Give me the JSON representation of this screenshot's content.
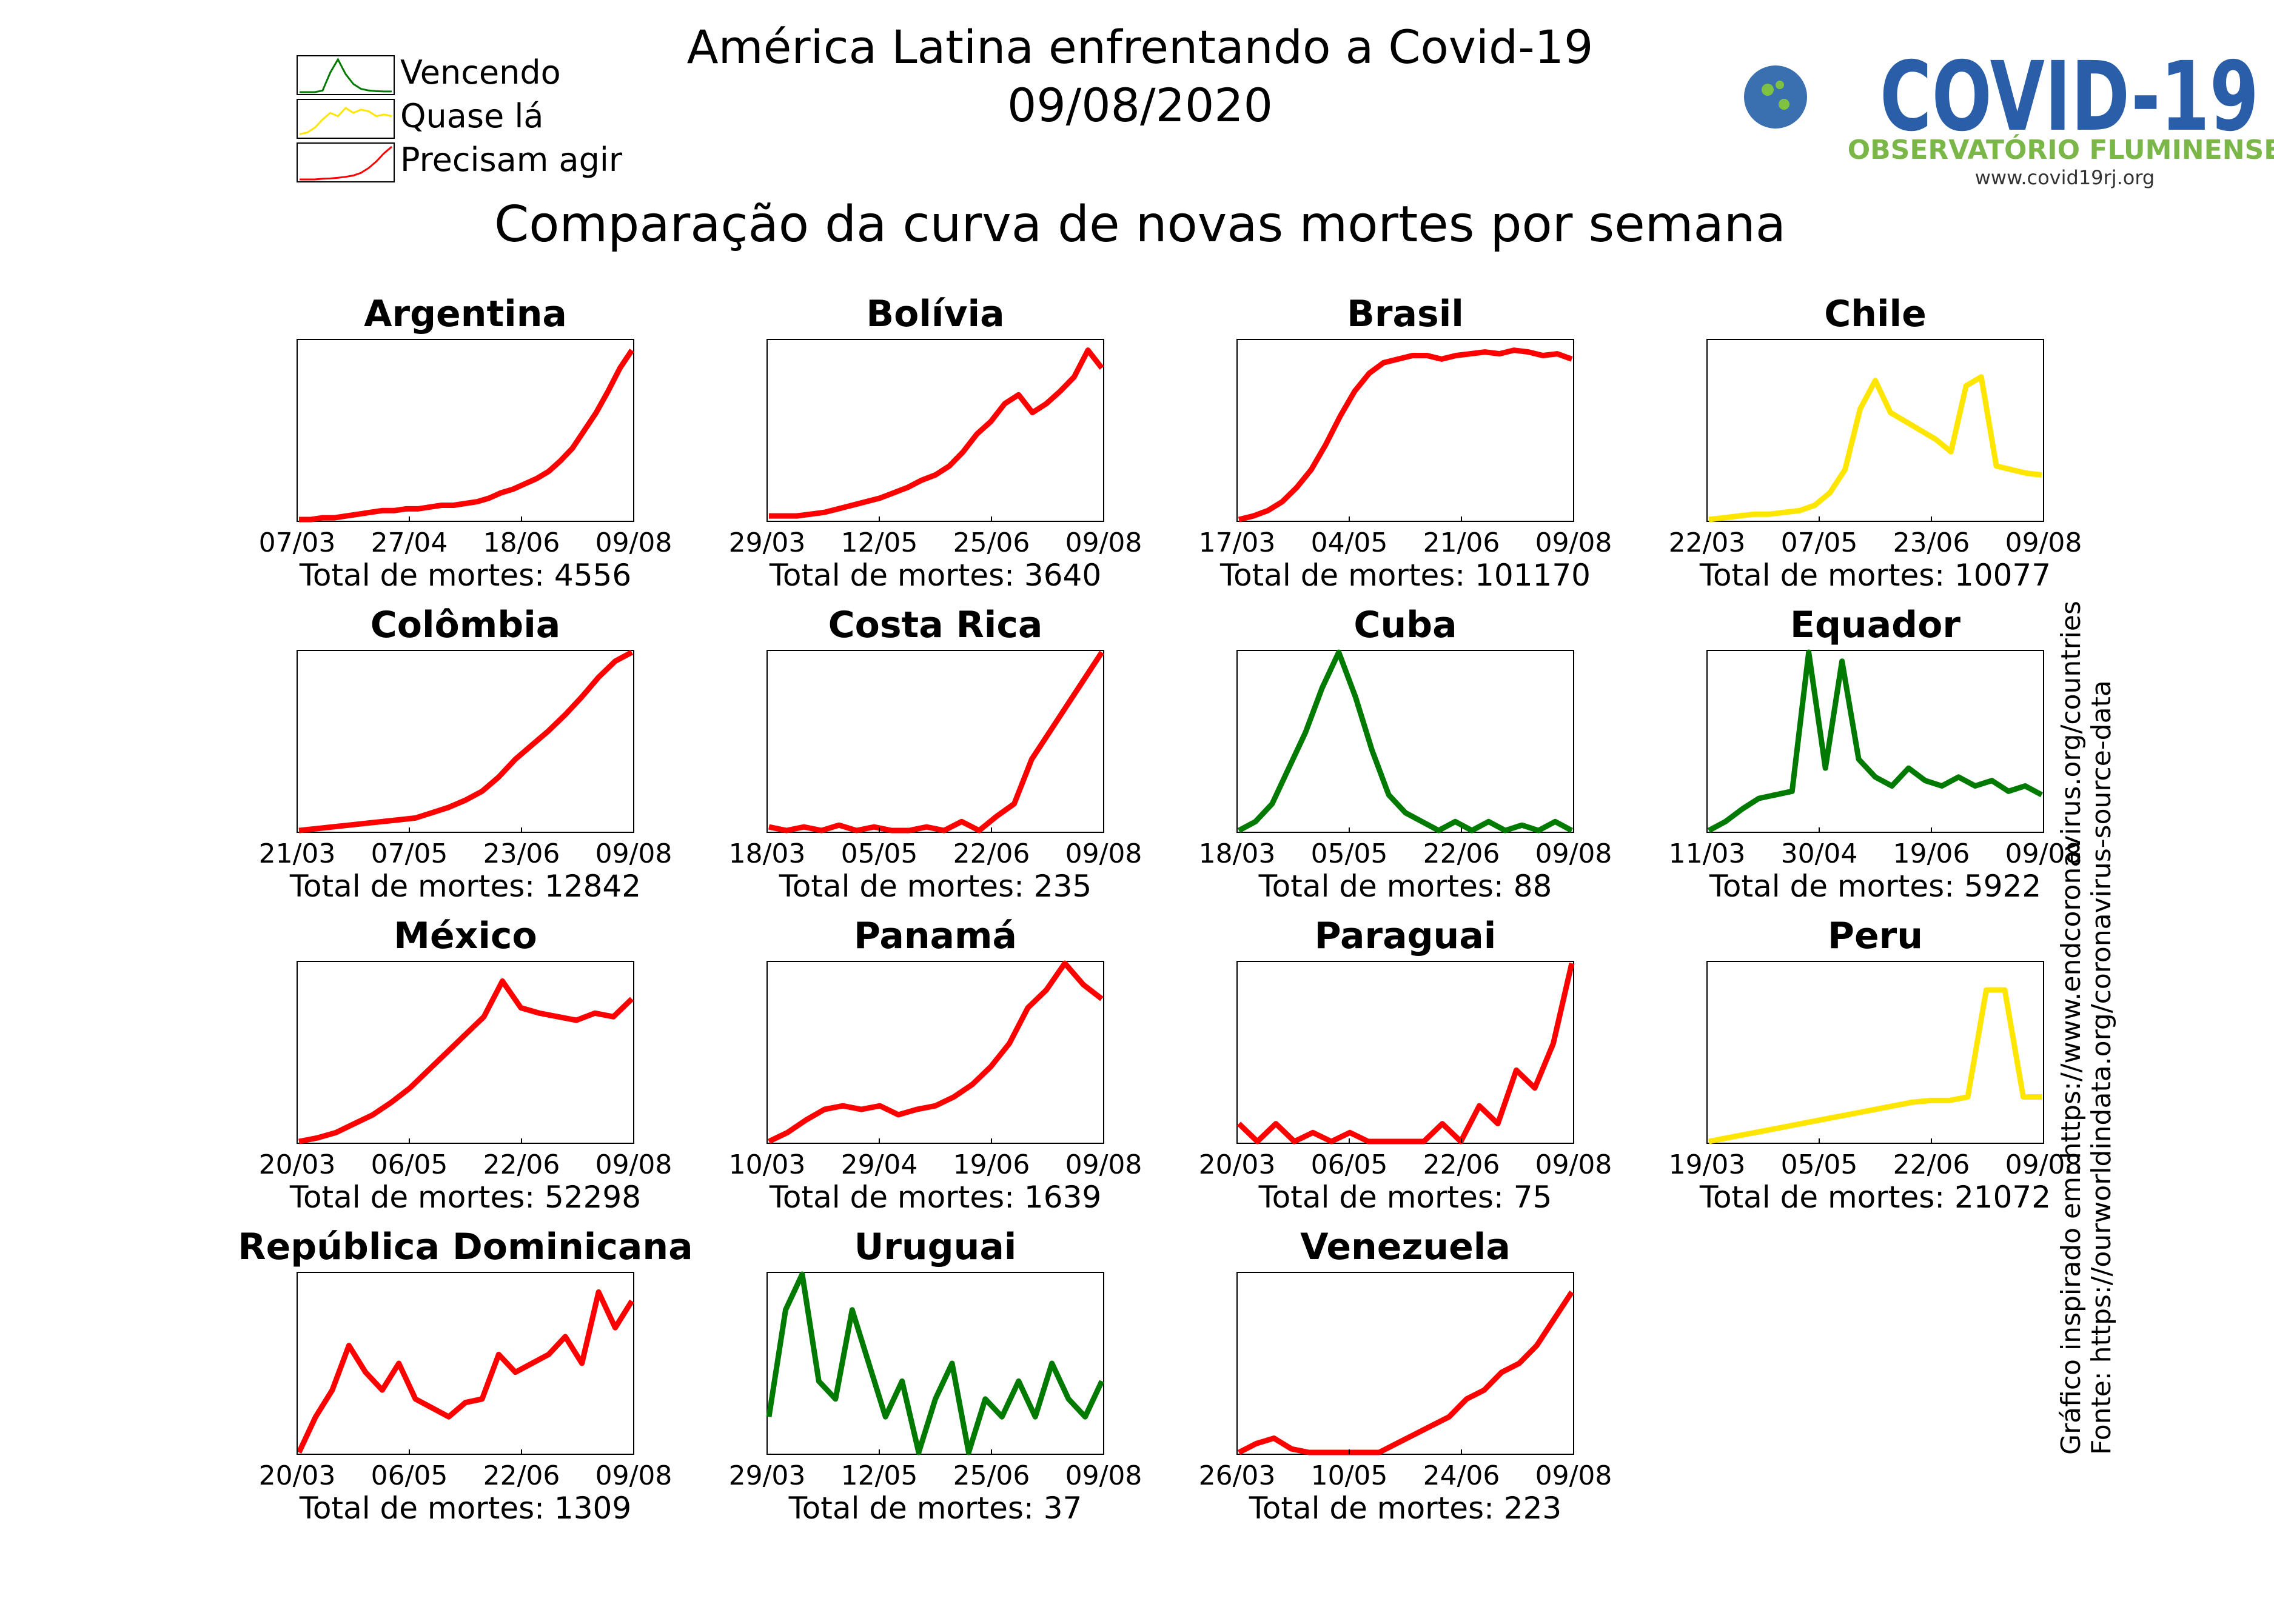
{
  "header": {
    "title": "América Latina enfrentando a Covid-19",
    "date": "09/08/2020",
    "subtitle": "Comparação da curva de novas mortes por semana"
  },
  "legend": [
    {
      "label": "Vencendo",
      "status": "vencendo"
    },
    {
      "label": "Quase lá",
      "status": "quase"
    },
    {
      "label": "Precisam agir",
      "status": "agir"
    }
  ],
  "logo": {
    "title": "COVID-19",
    "subtitle": "OBSERVATÓRIO FLUMINENSE",
    "url": "www.covid19rj.org"
  },
  "sources": {
    "line1": "Gráfico inspirado em: https://www.endcoronavirus.org/countries",
    "line2": "Fonte: https://ourworldindata.org/coronavirus-source-data"
  },
  "colors": {
    "vencendo": "#007a00",
    "quase": "#ffe600",
    "agir": "#ff0000"
  },
  "chart_data": [
    {
      "type": "line",
      "title": "Argentina",
      "status": "agir",
      "x_ticks": [
        "07/03",
        "27/04",
        "18/06",
        "09/08"
      ],
      "total_label": "Total de mortes: 4556",
      "ylim": [
        0,
        1
      ],
      "values": [
        0,
        0,
        0.01,
        0.01,
        0.02,
        0.03,
        0.04,
        0.05,
        0.05,
        0.06,
        0.06,
        0.07,
        0.08,
        0.08,
        0.09,
        0.1,
        0.12,
        0.15,
        0.17,
        0.2,
        0.23,
        0.27,
        0.33,
        0.4,
        0.5,
        0.6,
        0.72,
        0.85,
        0.95
      ]
    },
    {
      "type": "line",
      "title": "Bolívia",
      "status": "agir",
      "x_ticks": [
        "29/03",
        "12/05",
        "25/06",
        "09/08"
      ],
      "total_label": "Total de mortes: 3640",
      "ylim": [
        0,
        1
      ],
      "values": [
        0.02,
        0.02,
        0.02,
        0.03,
        0.04,
        0.06,
        0.08,
        0.1,
        0.12,
        0.15,
        0.18,
        0.22,
        0.25,
        0.3,
        0.38,
        0.48,
        0.55,
        0.65,
        0.7,
        0.6,
        0.65,
        0.72,
        0.8,
        0.95,
        0.85
      ]
    },
    {
      "type": "line",
      "title": "Brasil",
      "status": "agir",
      "x_ticks": [
        "17/03",
        "04/05",
        "21/06",
        "09/08"
      ],
      "total_label": "Total de mortes: 101170",
      "ylim": [
        0,
        1
      ],
      "values": [
        0,
        0.02,
        0.05,
        0.1,
        0.18,
        0.28,
        0.42,
        0.58,
        0.72,
        0.82,
        0.88,
        0.9,
        0.92,
        0.92,
        0.9,
        0.92,
        0.93,
        0.94,
        0.93,
        0.95,
        0.94,
        0.92,
        0.93,
        0.9
      ]
    },
    {
      "type": "line",
      "title": "Chile",
      "status": "quase",
      "x_ticks": [
        "22/03",
        "07/05",
        "23/06",
        "09/08"
      ],
      "total_label": "Total de mortes: 10077",
      "ylim": [
        0,
        1
      ],
      "values": [
        0,
        0.01,
        0.02,
        0.03,
        0.03,
        0.04,
        0.05,
        0.08,
        0.15,
        0.28,
        0.62,
        0.78,
        0.6,
        0.55,
        0.5,
        0.45,
        0.38,
        0.75,
        0.8,
        0.3,
        0.28,
        0.26,
        0.25
      ]
    },
    {
      "type": "line",
      "title": "Colômbia",
      "status": "agir",
      "x_ticks": [
        "21/03",
        "07/05",
        "23/06",
        "09/08"
      ],
      "total_label": "Total de mortes: 12842",
      "ylim": [
        0,
        1
      ],
      "values": [
        0,
        0.01,
        0.02,
        0.03,
        0.04,
        0.05,
        0.06,
        0.07,
        0.1,
        0.13,
        0.17,
        0.22,
        0.3,
        0.4,
        0.48,
        0.56,
        0.65,
        0.75,
        0.86,
        0.95,
        1
      ]
    },
    {
      "type": "line",
      "title": "Costa Rica",
      "status": "agir",
      "x_ticks": [
        "18/03",
        "05/05",
        "22/06",
        "09/08"
      ],
      "total_label": "Total de mortes: 235",
      "ylim": [
        0,
        1
      ],
      "values": [
        0.02,
        0,
        0.02,
        0,
        0.03,
        0,
        0.02,
        0,
        0,
        0.02,
        0,
        0.05,
        0,
        0.08,
        0.15,
        0.4,
        0.55,
        0.7,
        0.85,
        1
      ]
    },
    {
      "type": "line",
      "title": "Cuba",
      "status": "vencendo",
      "x_ticks": [
        "18/03",
        "05/05",
        "22/06",
        "09/08"
      ],
      "total_label": "Total de mortes: 88",
      "ylim": [
        0,
        1
      ],
      "values": [
        0,
        0.05,
        0.15,
        0.35,
        0.55,
        0.8,
        1,
        0.75,
        0.45,
        0.2,
        0.1,
        0.05,
        0,
        0.05,
        0,
        0.05,
        0,
        0.03,
        0,
        0.05,
        0
      ]
    },
    {
      "type": "line",
      "title": "Equador",
      "status": "vencendo",
      "x_ticks": [
        "11/03",
        "30/04",
        "19/06",
        "09/08"
      ],
      "total_label": "Total de mortes: 5922",
      "ylim": [
        0,
        1
      ],
      "values": [
        0,
        0.05,
        0.12,
        0.18,
        0.2,
        0.22,
        1,
        0.35,
        0.95,
        0.4,
        0.3,
        0.25,
        0.35,
        0.28,
        0.25,
        0.3,
        0.25,
        0.28,
        0.22,
        0.25,
        0.2
      ]
    },
    {
      "type": "line",
      "title": "México",
      "status": "agir",
      "x_ticks": [
        "20/03",
        "06/05",
        "22/06",
        "09/08"
      ],
      "total_label": "Total de mortes: 52298",
      "ylim": [
        0,
        1
      ],
      "values": [
        0,
        0.02,
        0.05,
        0.1,
        0.15,
        0.22,
        0.3,
        0.4,
        0.5,
        0.6,
        0.7,
        0.9,
        0.75,
        0.72,
        0.7,
        0.68,
        0.72,
        0.7,
        0.8
      ]
    },
    {
      "type": "line",
      "title": "Panamá",
      "status": "agir",
      "x_ticks": [
        "10/03",
        "29/04",
        "19/06",
        "09/08"
      ],
      "total_label": "Total de mortes: 1639",
      "ylim": [
        0,
        1
      ],
      "values": [
        0,
        0.05,
        0.12,
        0.18,
        0.2,
        0.18,
        0.2,
        0.15,
        0.18,
        0.2,
        0.25,
        0.32,
        0.42,
        0.55,
        0.75,
        0.85,
        1,
        0.88,
        0.8
      ]
    },
    {
      "type": "line",
      "title": "Paraguai",
      "status": "agir",
      "x_ticks": [
        "20/03",
        "06/05",
        "22/06",
        "09/08"
      ],
      "total_label": "Total de mortes: 75",
      "ylim": [
        0,
        1
      ],
      "values": [
        0.1,
        0,
        0.1,
        0,
        0.05,
        0,
        0.05,
        0,
        0,
        0,
        0,
        0.1,
        0,
        0.2,
        0.1,
        0.4,
        0.3,
        0.55,
        1
      ]
    },
    {
      "type": "line",
      "title": "Peru",
      "status": "quase",
      "x_ticks": [
        "19/03",
        "05/05",
        "22/06",
        "09/08"
      ],
      "total_label": "Total de mortes: 21072",
      "ylim": [
        0,
        1
      ],
      "values": [
        0,
        0.02,
        0.04,
        0.06,
        0.08,
        0.1,
        0.12,
        0.14,
        0.16,
        0.18,
        0.2,
        0.22,
        0.23,
        0.23,
        0.25,
        0.85,
        0.85,
        0.25,
        0.25
      ]
    },
    {
      "type": "line",
      "title": "República Dominicana",
      "status": "agir",
      "x_ticks": [
        "20/03",
        "06/05",
        "22/06",
        "09/08"
      ],
      "total_label": "Total de mortes: 1309",
      "ylim": [
        0,
        1
      ],
      "values": [
        0,
        0.2,
        0.35,
        0.6,
        0.45,
        0.35,
        0.5,
        0.3,
        0.25,
        0.2,
        0.28,
        0.3,
        0.55,
        0.45,
        0.5,
        0.55,
        0.65,
        0.5,
        0.9,
        0.7,
        0.85
      ]
    },
    {
      "type": "line",
      "title": "Uruguai",
      "status": "vencendo",
      "x_ticks": [
        "29/03",
        "12/05",
        "25/06",
        "09/08"
      ],
      "total_label": "Total de mortes: 37",
      "ylim": [
        0,
        1
      ],
      "values": [
        0.2,
        0.8,
        1,
        0.4,
        0.3,
        0.8,
        0.5,
        0.2,
        0.4,
        0,
        0.3,
        0.5,
        0,
        0.3,
        0.2,
        0.4,
        0.2,
        0.5,
        0.3,
        0.2,
        0.4
      ]
    },
    {
      "type": "line",
      "title": "Venezuela",
      "status": "agir",
      "x_ticks": [
        "26/03",
        "10/05",
        "24/06",
        "09/08"
      ],
      "total_label": "Total de mortes: 223",
      "ylim": [
        0,
        1
      ],
      "values": [
        0,
        0.05,
        0.08,
        0.02,
        0,
        0,
        0,
        0,
        0,
        0.05,
        0.1,
        0.15,
        0.2,
        0.3,
        0.35,
        0.45,
        0.5,
        0.6,
        0.75,
        0.9
      ]
    }
  ]
}
